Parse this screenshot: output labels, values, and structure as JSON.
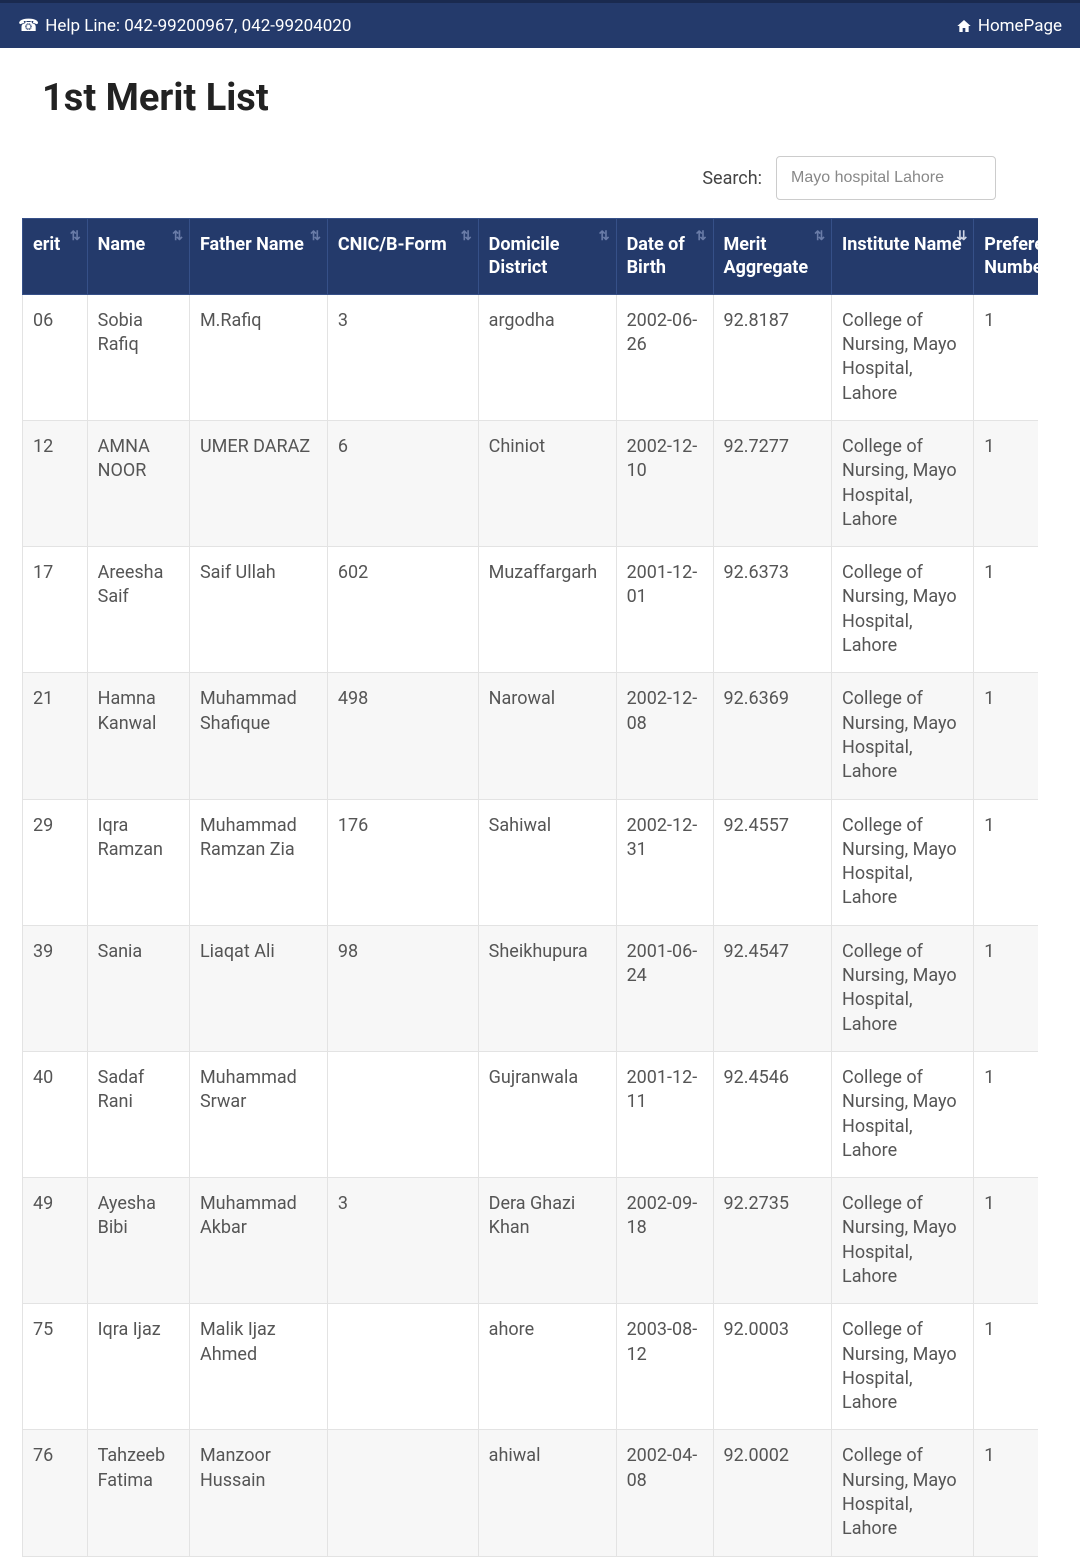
{
  "topbar": {
    "help_line": "Help Line: 042-99200967, 042-99204020",
    "home_label": "HomePage"
  },
  "page": {
    "title": "1st Merit List"
  },
  "search": {
    "label": "Search:",
    "value": "Mayo hospital Lahore"
  },
  "columns": [
    {
      "key": "merit",
      "label": "erit"
    },
    {
      "key": "name",
      "label": "Name"
    },
    {
      "key": "father",
      "label": "Father Name"
    },
    {
      "key": "cnic",
      "label": "CNIC/B-Form"
    },
    {
      "key": "domicile",
      "label": "Domicile District"
    },
    {
      "key": "dob",
      "label": "Date of Birth"
    },
    {
      "key": "agg",
      "label": "Merit Aggregate"
    },
    {
      "key": "inst",
      "label": "Institute Name",
      "sort_active": true
    },
    {
      "key": "pref",
      "label": "Preference Number"
    }
  ],
  "rows": [
    {
      "merit": "06",
      "name": "Sobia Rafiq",
      "father": "M.Rafiq",
      "cnic": "3",
      "domicile": "argodha",
      "dob": "2002-06-26",
      "agg": "92.8187",
      "inst": "College of Nursing, Mayo Hospital, Lahore",
      "pref": "1"
    },
    {
      "merit": "12",
      "name": "AMNA NOOR",
      "father": "UMER DARAZ",
      "cnic": "6",
      "domicile": "Chiniot",
      "dob": "2002-12-10",
      "agg": "92.7277",
      "inst": "College of Nursing, Mayo Hospital, Lahore",
      "pref": "1"
    },
    {
      "merit": "17",
      "name": "Areesha Saif",
      "father": "Saif Ullah",
      "cnic": "602",
      "domicile": "Muzaffargarh",
      "dob": "2001-12-01",
      "agg": "92.6373",
      "inst": "College of Nursing, Mayo Hospital, Lahore",
      "pref": "1"
    },
    {
      "merit": "21",
      "name": "Hamna Kanwal",
      "father": "Muhammad Shafique",
      "cnic": "498",
      "domicile": "Narowal",
      "dob": "2002-12-08",
      "agg": "92.6369",
      "inst": "College of Nursing, Mayo Hospital, Lahore",
      "pref": "1"
    },
    {
      "merit": "29",
      "name": "Iqra Ramzan",
      "father": "Muhammad Ramzan Zia",
      "cnic": "176",
      "domicile": "Sahiwal",
      "dob": "2002-12-31",
      "agg": "92.4557",
      "inst": "College of Nursing, Mayo Hospital, Lahore",
      "pref": "1"
    },
    {
      "merit": "39",
      "name": "Sania",
      "father": "Liaqat Ali",
      "cnic": "98",
      "domicile": "Sheikhupura",
      "dob": "2001-06-24",
      "agg": "92.4547",
      "inst": "College of Nursing, Mayo Hospital, Lahore",
      "pref": "1"
    },
    {
      "merit": "40",
      "name": "Sadaf Rani",
      "father": "Muhammad Srwar",
      "cnic": "",
      "domicile": "Gujranwala",
      "dob": "2001-12-11",
      "agg": "92.4546",
      "inst": "College of Nursing, Mayo Hospital, Lahore",
      "pref": "1"
    },
    {
      "merit": "49",
      "name": "Ayesha Bibi",
      "father": "Muhammad Akbar",
      "cnic": "3",
      "domicile": "Dera Ghazi Khan",
      "dob": "2002-09-18",
      "agg": "92.2735",
      "inst": "College of Nursing, Mayo Hospital, Lahore",
      "pref": "1"
    },
    {
      "merit": "75",
      "name": "Iqra Ijaz",
      "father": "Malik Ijaz Ahmed",
      "cnic": "",
      "domicile": "ahore",
      "dob": "2003-08-12",
      "agg": "92.0003",
      "inst": "College of Nursing, Mayo Hospital, Lahore",
      "pref": "1"
    },
    {
      "merit": "76",
      "name": "Tahzeeb Fatima",
      "father": "Manzoor Hussain",
      "cnic": "",
      "domicile": "ahiwal",
      "dob": "2002-04-08",
      "agg": "92.0002",
      "inst": "College of Nursing, Mayo Hospital, Lahore",
      "pref": "1"
    }
  ],
  "colors": {
    "header_bg": "#243a6b",
    "header_border": "#365088",
    "row_alt": "#f7f7f7",
    "text": "#555555"
  }
}
